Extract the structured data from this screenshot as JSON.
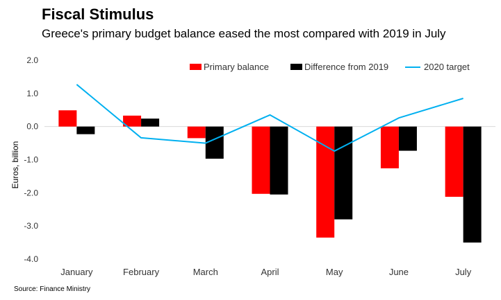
{
  "header": {
    "title": "Fiscal Stimulus",
    "subtitle": "Greece's primary budget balance eased the most compared with 2019 in July"
  },
  "footer": {
    "source": "Source: Finance Ministry"
  },
  "colors": {
    "primary_balance": "#ff0000",
    "difference": "#000000",
    "target": "#00b0f0",
    "zero_line": "#d9d9d9"
  },
  "chart_data": {
    "type": "bar",
    "title": "Fiscal Stimulus",
    "subtitle": "Greece's primary budget balance eased the most compared with 2019 in July",
    "xlabel": "",
    "ylabel": "Euros, billion",
    "ylim": [
      -4.0,
      2.0
    ],
    "yticks": [
      "2.0",
      "1.0",
      "0.0",
      "-1.0",
      "-2.0",
      "-3.0",
      "-4.0"
    ],
    "categories": [
      "January",
      "February",
      "March",
      "April",
      "May",
      "June",
      "July"
    ],
    "series": [
      {
        "name": "Primary balance",
        "kind": "bar",
        "values": [
          0.49,
          0.33,
          -0.35,
          -2.03,
          -3.35,
          -1.26,
          -2.12
        ]
      },
      {
        "name": "Difference from 2019",
        "kind": "bar",
        "values": [
          -0.23,
          0.24,
          -0.97,
          -2.05,
          -2.8,
          -0.73,
          -3.5
        ]
      },
      {
        "name": "2020 target",
        "kind": "line",
        "values": [
          1.27,
          -0.34,
          -0.5,
          0.35,
          -0.74,
          0.26,
          0.85
        ]
      }
    ],
    "legend": "top-right",
    "grid": false
  }
}
